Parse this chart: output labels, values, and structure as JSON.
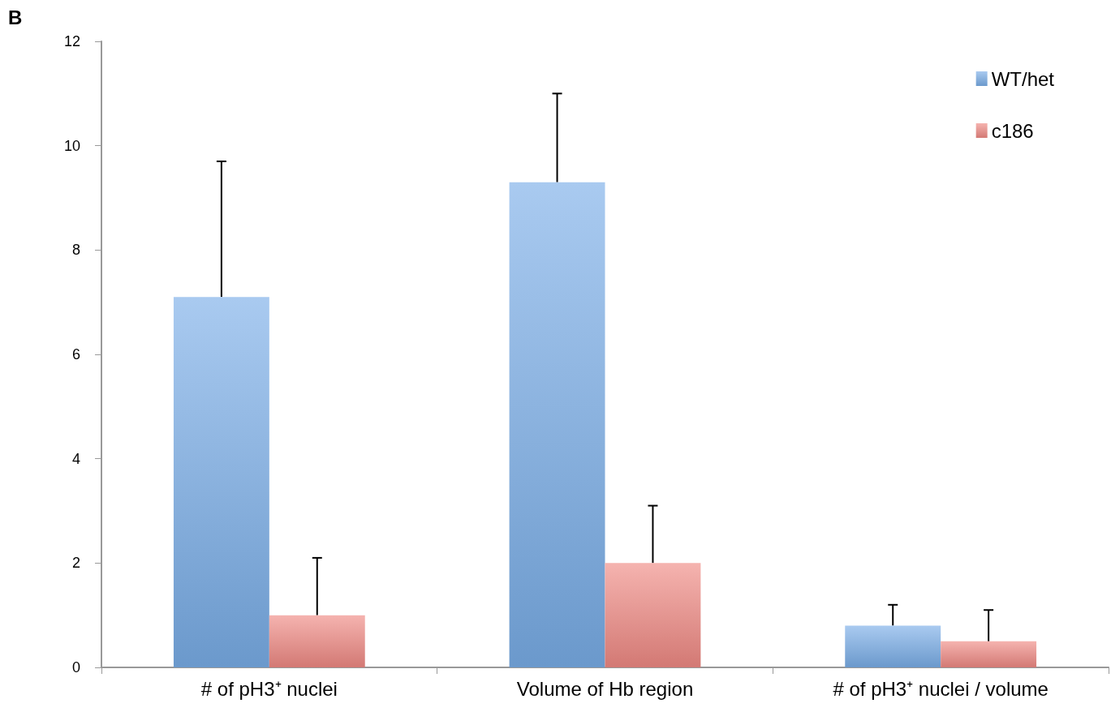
{
  "chart_data": {
    "type": "bar",
    "categories": [
      "# of pH3⁺ nuclei",
      "Volume of Hb region",
      "# of pH3⁺ nuclei / volume"
    ],
    "series": [
      {
        "name": "WT/het",
        "color": "#7aaee8",
        "values": [
          7.1,
          9.3,
          0.8
        ],
        "errors": [
          [
            7.1,
            9.7
          ],
          [
            9.3,
            11.0
          ],
          [
            0.8,
            1.2
          ]
        ]
      },
      {
        "name": "c186",
        "color": "#f08a84",
        "values": [
          1.0,
          2.0,
          0.5
        ],
        "errors": [
          [
            1.0,
            2.1
          ],
          [
            2.0,
            3.1
          ],
          [
            0.5,
            1.1
          ]
        ]
      }
    ],
    "ylim": [
      0,
      12
    ],
    "yticks": [
      0,
      2,
      4,
      6,
      8,
      10,
      12
    ],
    "grid": false,
    "legend": "top right",
    "annotations": [
      "B"
    ]
  }
}
